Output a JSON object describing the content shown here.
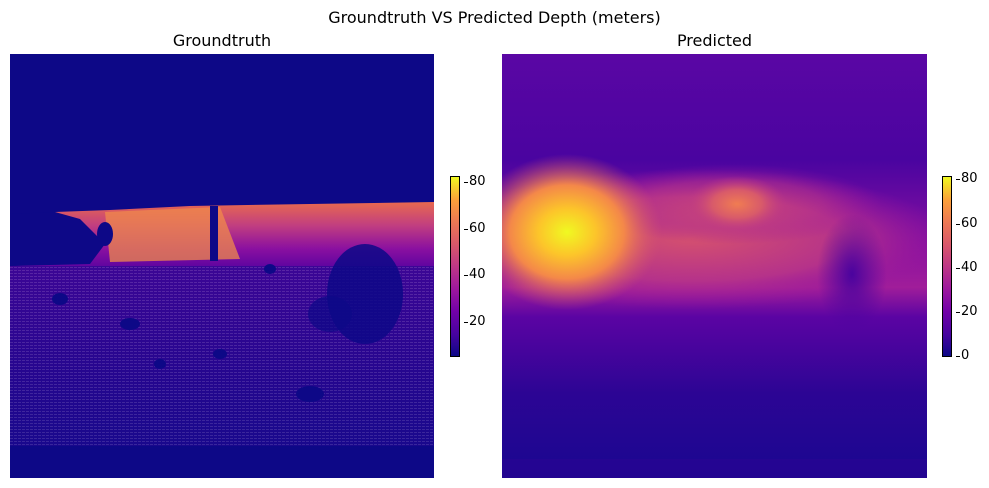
{
  "figure": {
    "title": "Groundtruth VS Predicted Depth (meters)"
  },
  "panels": [
    {
      "title": "Groundtruth",
      "colormap": "plasma",
      "colorbar": {
        "ticks": [
          "20",
          "40",
          "60",
          "80"
        ],
        "range": [
          5,
          82
        ]
      }
    },
    {
      "title": "Predicted",
      "colormap": "plasma",
      "colorbar": {
        "ticks": [
          "0",
          "20",
          "40",
          "60",
          "80"
        ],
        "range": [
          0,
          81
        ]
      }
    }
  ],
  "colors": {
    "plasma_low": "#0d0887",
    "plasma_mid": "#bd3786",
    "plasma_high": "#f0f921"
  }
}
